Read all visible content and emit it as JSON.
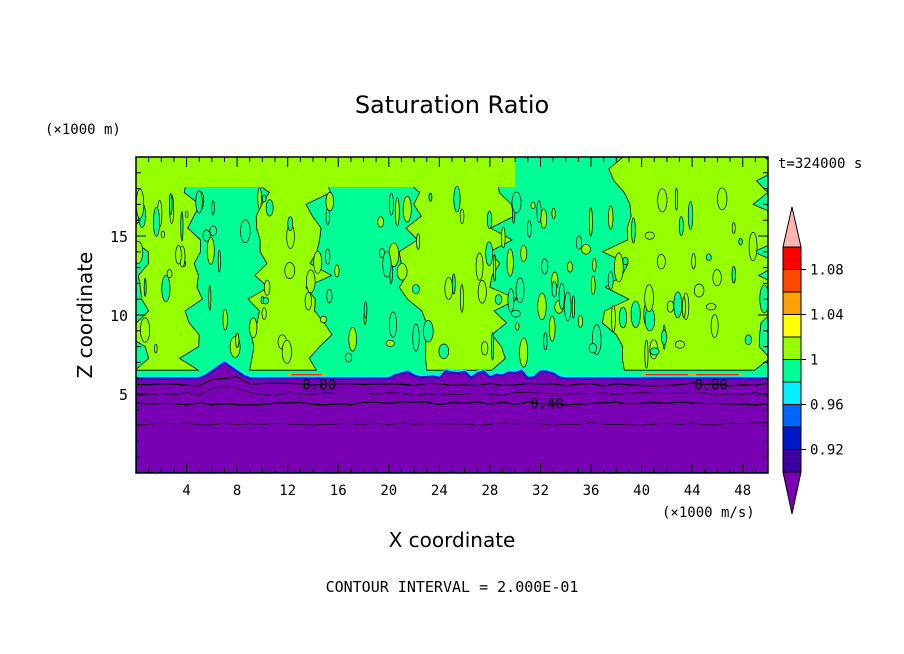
{
  "chart_data": {
    "type": "heatmap",
    "title": "Saturation Ratio",
    "xlabel": "X coordinate",
    "ylabel": "Z coordinate",
    "x_unit": "(×1000 m/s)",
    "y_unit": "(×1000 m)",
    "time_label": "t=324000 s",
    "footer": "CONTOUR INTERVAL = 2.000E-01",
    "xlim": [
      0,
      50
    ],
    "ylim": [
      0,
      20
    ],
    "x_ticks": [
      4,
      8,
      12,
      16,
      20,
      24,
      28,
      32,
      36,
      40,
      44,
      48
    ],
    "y_ticks": [
      5,
      10,
      15
    ],
    "colorbar": {
      "levels": [
        0.9,
        0.92,
        0.94,
        0.96,
        0.98,
        1.0,
        1.02,
        1.04,
        1.06,
        1.08,
        1.1
      ],
      "colors": [
        "#7a00b4",
        "#3c00a0",
        "#0018c8",
        "#0064ff",
        "#00f0ff",
        "#00ff96",
        "#96ff00",
        "#ffff00",
        "#ffa000",
        "#ff4800",
        "#ff0000",
        "#ffb4b4"
      ],
      "tick_labels": [
        "0.92",
        "0.96",
        "1",
        "1.04",
        "1.08"
      ],
      "tick_values": [
        0.92,
        0.96,
        1.0,
        1.04,
        1.08
      ]
    },
    "contour_labels": [
      {
        "text": "0.80",
        "x": 14.5,
        "y": 5.6
      },
      {
        "text": "0.80",
        "x": 45.5,
        "y": 5.6
      },
      {
        "text": "0.40",
        "x": 32.5,
        "y": 4.4
      }
    ],
    "layers": {
      "lower_top_z": 6.0,
      "upper_green_columns": [
        [
          0,
          4.5
        ],
        [
          9.5,
          14.5
        ],
        [
          22,
          29
        ],
        [
          38,
          50
        ]
      ],
      "peak_x": 7.0,
      "peak_z": 7.0
    }
  }
}
